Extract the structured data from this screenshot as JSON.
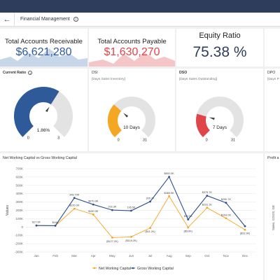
{
  "header": {
    "back": "←",
    "title": "Financial Management",
    "info": "i"
  },
  "kpis": [
    {
      "title": "Total Accounts Receivable",
      "value": "$6,621,280",
      "color": "#2f5a9a",
      "area_color": "#c8d6ea"
    },
    {
      "title": "Total Accounts Payable",
      "value": "$1,630,270",
      "color": "#e0454a",
      "area_color": "#f4c6c8"
    },
    {
      "title": "Equity Ratio",
      "value": "75.38 %",
      "color": "#2f3d5c"
    }
  ],
  "gauges": [
    {
      "title": "Current Ratio",
      "info": "i",
      "subtitle": "",
      "value_label": "1.86%",
      "min": "0",
      "max": "3",
      "value": 1.86,
      "range_max": 3,
      "color": "#2f5a9a"
    },
    {
      "title": "DSI",
      "subtitle": "[Days Sales Inventory]",
      "value_label": "10 Days",
      "min": "0",
      "max": "31",
      "value": 10,
      "range_max": 31,
      "color": "#f5a623"
    },
    {
      "title": "DSO",
      "subtitle": "[Days Sales Outstanding]",
      "value_label": "7 Days",
      "min": "0",
      "max": "31",
      "value": 7,
      "range_max": 31,
      "color": "#e0454a"
    },
    {
      "title": "DPO",
      "subtitle": "[Days P"
    }
  ],
  "chart_data": {
    "type": "line",
    "title": "Net Working Capital vs Gross Working Capital",
    "ylabel": "Values",
    "categories": [
      "Jan",
      "Feb",
      "Mar",
      "Apr",
      "May",
      "Jun",
      "Jul",
      "Aug",
      "Sep",
      "Oct",
      "Nov",
      "Dec"
    ],
    "ylim": [
      -300000,
      700000
    ],
    "yticks": [
      "700K",
      "600K",
      "500K",
      "400K",
      "300K",
      "200K",
      "100K",
      "0",
      "-100K",
      "-200K",
      "-300K"
    ],
    "series": [
      {
        "name": "Net Working Capital",
        "color": "#f5a623",
        "values": [
          17900,
          16000,
          220000,
          150000,
          -127000,
          -118000,
          -11000,
          370000,
          -5000,
          231000,
          104000,
          -33000
        ],
        "labels": [
          "",
          "",
          "$220.0K",
          "$150.0K",
          "($127.2K)",
          "($118.2K)",
          "($11.2K)",
          "$369.9K",
          "($5.0K)",
          "$231.1K",
          "$104.0K",
          "($33.3K)"
        ]
      },
      {
        "name": "Gross Working Capital",
        "color": "#2f4e8c",
        "values": [
          17900,
          16000,
          348700,
          270000,
          203300,
          195500,
          305700,
          602000,
          90500,
          375700,
          290700,
          10000
        ],
        "labels": [
          "$17.9K",
          "$16K",
          "348.70K",
          "$270.0K",
          "203.3K",
          "195.5K",
          "305.7K",
          "$602.0K",
          "$90.5K",
          "$375.7K",
          "$290.7K",
          ""
        ]
      }
    ],
    "legend": [
      "Net Working Capital",
      "Gross Working Capital"
    ]
  },
  "side_chart": {
    "title": "Profit a",
    "axis_label": "Sales, COGS, GE"
  }
}
